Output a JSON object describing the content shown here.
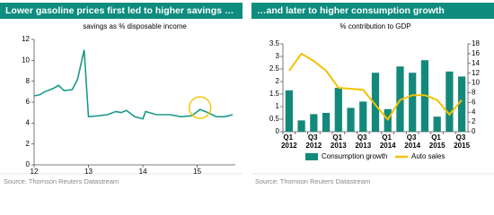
{
  "chart_data": [
    {
      "type": "line",
      "title": "Lower gasoline prices first led to higher savings …",
      "subtitle": "savings as % disposable income",
      "source": "Source: Thomson Reuters Datastream",
      "x": [
        12.0,
        12.1,
        12.2,
        12.35,
        12.45,
        12.55,
        12.7,
        12.8,
        12.92,
        13.0,
        13.2,
        13.35,
        13.5,
        13.6,
        13.7,
        13.85,
        14.0,
        14.05,
        14.25,
        14.5,
        14.7,
        14.9,
        15.05,
        15.2,
        15.35,
        15.5,
        15.65
      ],
      "values": [
        6.6,
        6.7,
        7.0,
        7.3,
        7.6,
        7.1,
        7.2,
        8.2,
        11.0,
        4.6,
        4.7,
        4.8,
        5.1,
        5.0,
        5.2,
        4.6,
        4.4,
        5.1,
        4.8,
        4.8,
        4.6,
        4.7,
        5.3,
        5.0,
        4.6,
        4.6,
        4.8
      ],
      "color": "#1a9a8a",
      "xlim": [
        12,
        15.7
      ],
      "xticks": [
        12,
        13,
        14,
        15
      ],
      "ylim": [
        0,
        12
      ],
      "yticks": [
        0,
        2,
        4,
        6,
        8,
        10,
        12
      ]
    },
    {
      "type": "bar",
      "title": "…and later to higher consumption growth",
      "subtitle": "% contribution to GDP",
      "source": "Source: Thomson Reuters Datastream",
      "categories": [
        "Q1 2012",
        null,
        "Q3 2012",
        null,
        "Q1 2013",
        null,
        "Q3 2013",
        null,
        "Q1 2014",
        null,
        "Q3 2014",
        null,
        "Q1 2015",
        null,
        "Q3 2015"
      ],
      "series": [
        {
          "name": "Consumption growth",
          "type": "bar",
          "color": "#13897b",
          "values": [
            1.65,
            0.45,
            0.7,
            0.75,
            1.75,
            0.95,
            1.2,
            2.35,
            0.9,
            2.6,
            2.35,
            2.85,
            0.6,
            2.4,
            2.2
          ]
        },
        {
          "name": "Auto sales",
          "type": "line",
          "axis": "y2",
          "color": "#f2c200",
          "values": [
            12.5,
            16,
            14.5,
            12.5,
            9,
            8.8,
            8.6,
            5.5,
            2.5,
            6.5,
            7.5,
            7.5,
            6.5,
            3.5,
            6.5
          ]
        }
      ],
      "ylim": [
        0,
        3.5
      ],
      "yticks": [
        0,
        0.5,
        1,
        1.5,
        2,
        2.5,
        3,
        3.5
      ],
      "y2lim": [
        0,
        18
      ],
      "y2ticks": [
        0,
        2,
        4,
        6,
        8,
        10,
        12,
        14,
        16,
        18
      ]
    }
  ]
}
